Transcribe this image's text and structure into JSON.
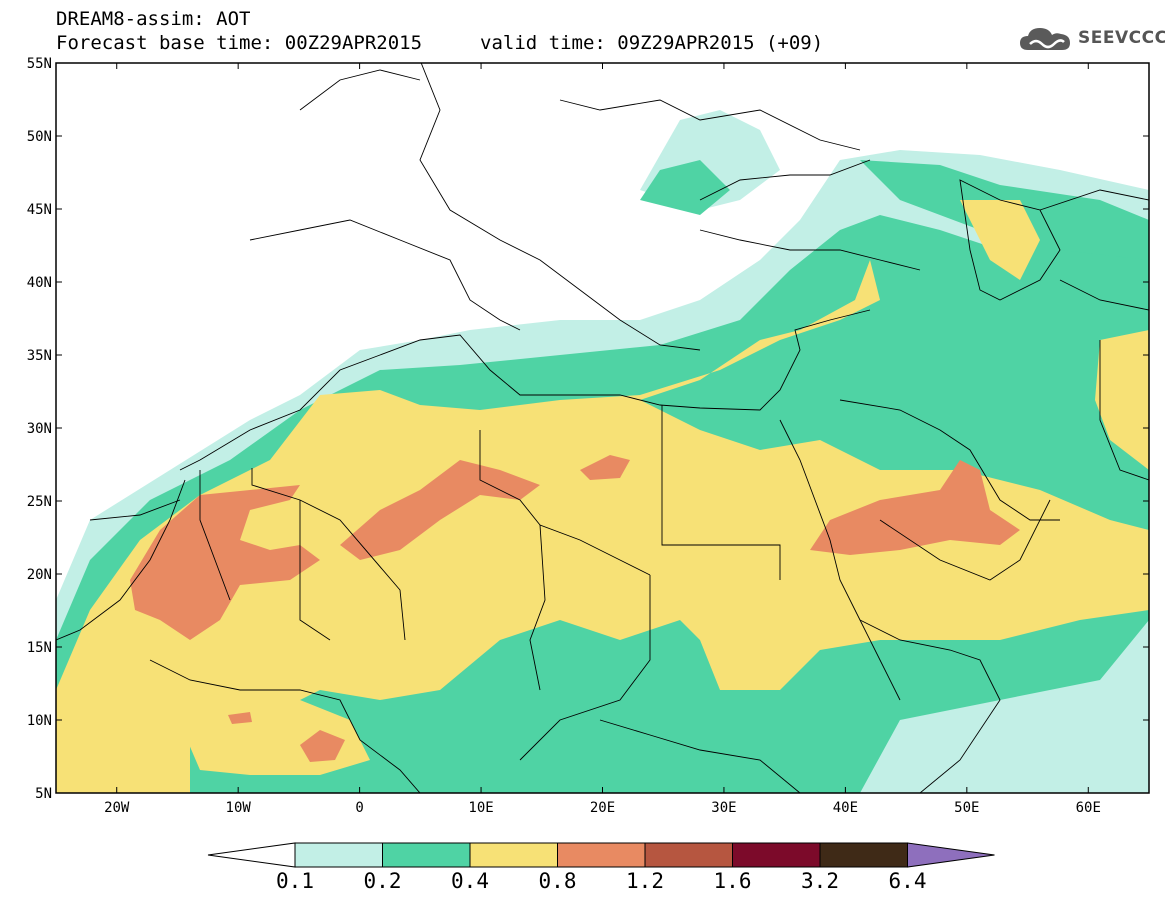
{
  "header": {
    "title": "DREAM8-assim: AOT",
    "base_time": "Forecast base time: 00Z29APR2015",
    "valid_time": "valid time: 09Z29APR2015 (+09)"
  },
  "logo": {
    "text": "SEEVCCC",
    "icon": "cloud-icon"
  },
  "map": {
    "lat_labels": [
      "55N",
      "50N",
      "45N",
      "40N",
      "35N",
      "30N",
      "25N",
      "20N",
      "15N",
      "10N",
      "5N"
    ],
    "lon_labels": [
      "20W",
      "10W",
      "0",
      "10E",
      "20E",
      "30E",
      "40E",
      "50E",
      "60E"
    ],
    "lat_range": [
      5,
      55
    ],
    "lon_range": [
      -25,
      65
    ]
  },
  "colorbar": {
    "labels": [
      "0.1",
      "0.2",
      "0.4",
      "0.8",
      "1.2",
      "1.6",
      "3.2",
      "6.4"
    ],
    "colors": [
      "#ffffff",
      "#c2efe6",
      "#4fd3a4",
      "#f7e176",
      "#e88a62",
      "#b65640",
      "#7c0a2a",
      "#3f2a17",
      "#8e6fbd"
    ]
  }
}
